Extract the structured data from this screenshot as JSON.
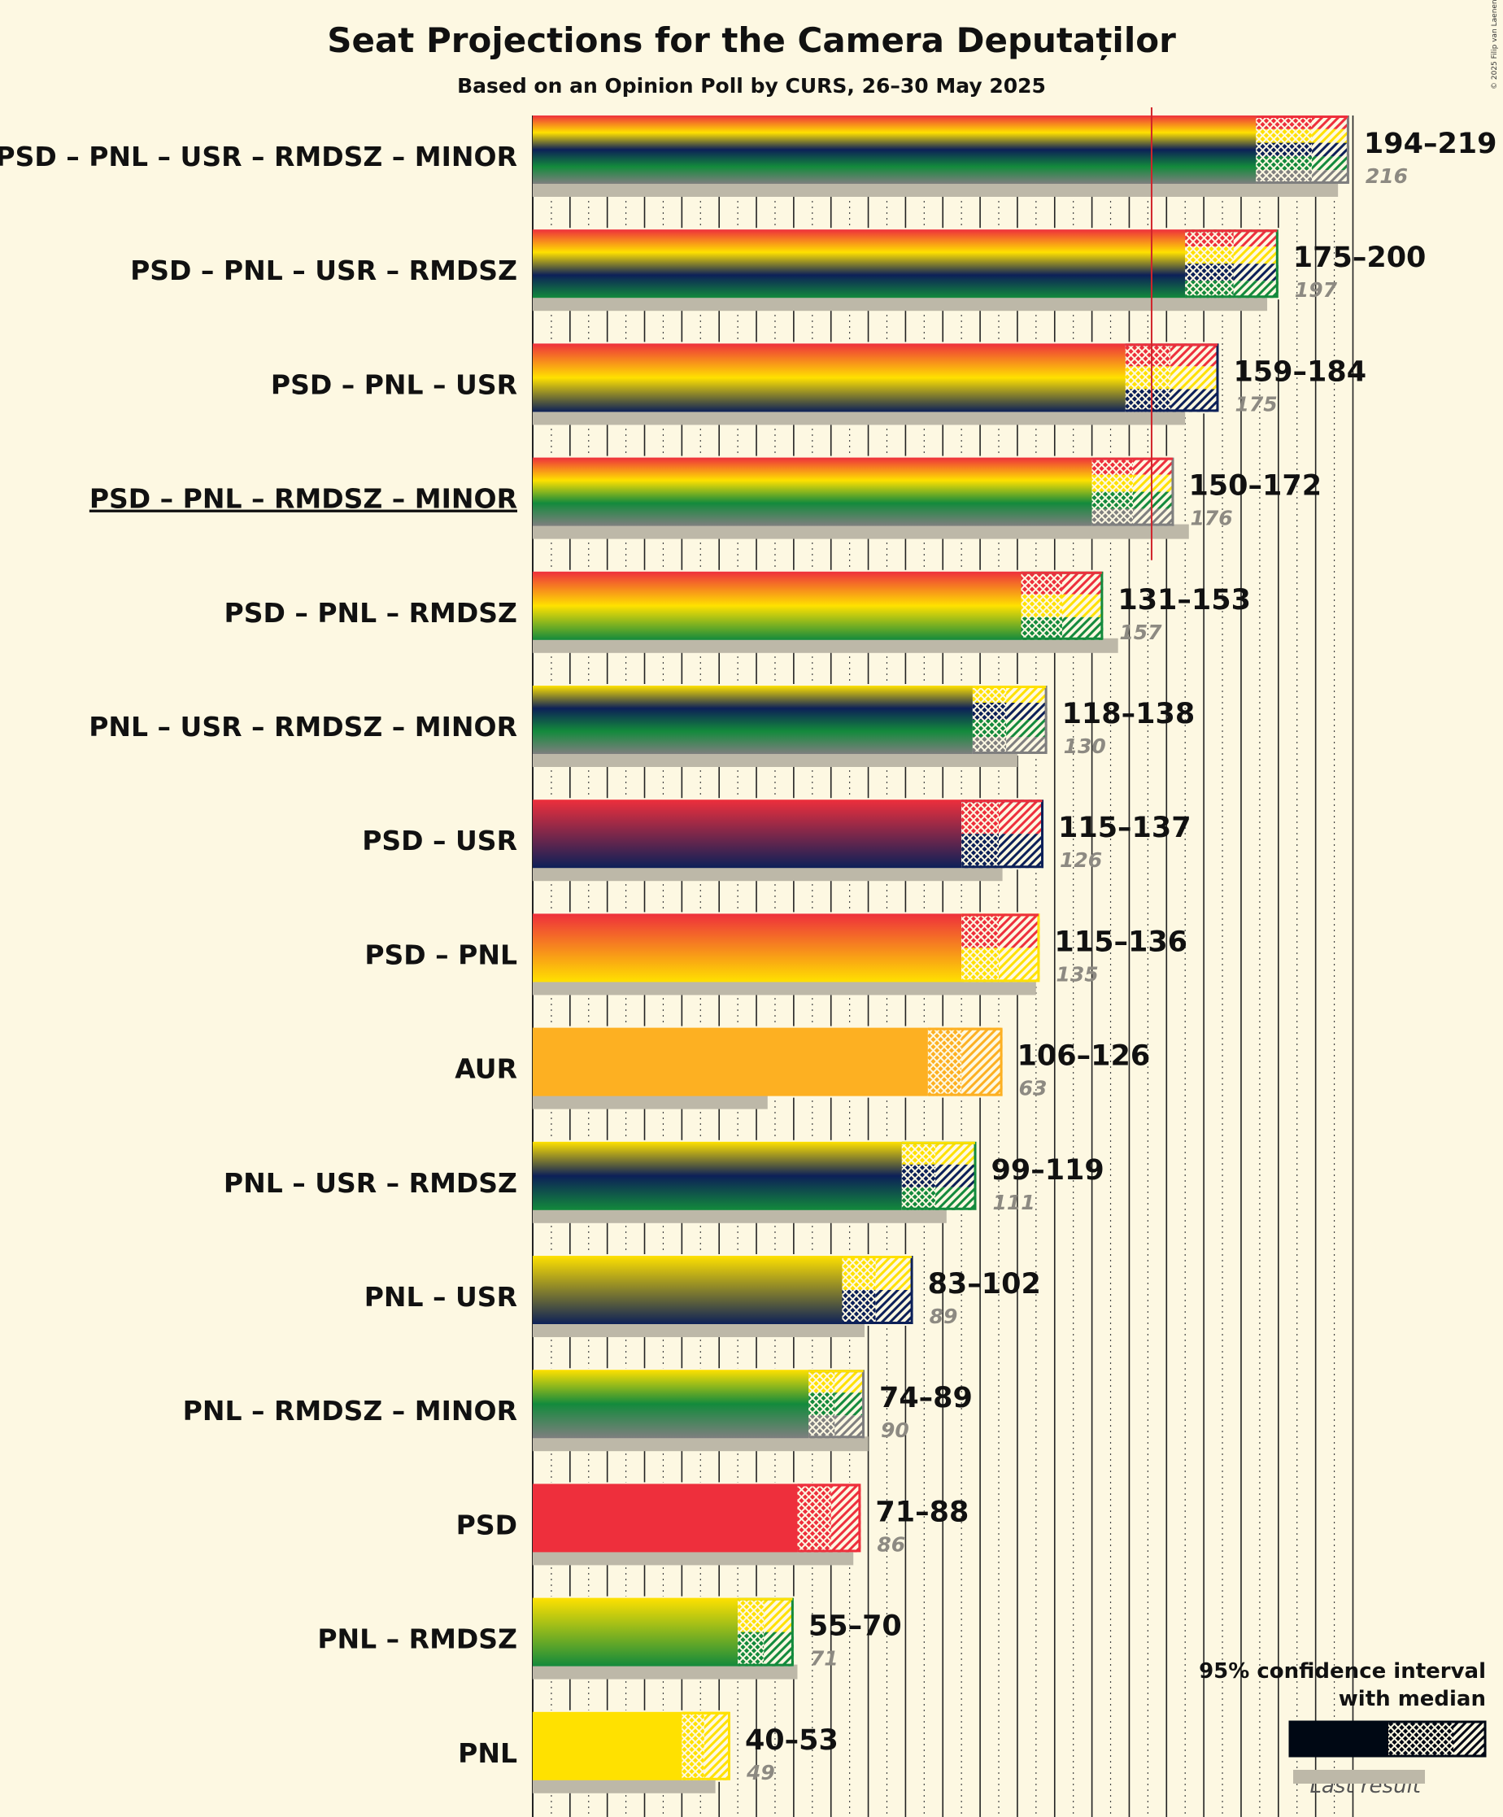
{
  "chart_data": {
    "type": "bar",
    "title": "Seat Projections for the Camera Deputaților",
    "subtitle": "Based on an Opinion Poll by CURS, 26–30 May 2025",
    "copyright": "© 2025 Filip van Laenen",
    "majority_line": 166,
    "xlim": [
      0,
      220
    ],
    "colors": {
      "PSD": "#ee2f3c",
      "PNL": "#ffe100",
      "USR": "#0c2058",
      "RMDSZ": "#138a3c",
      "MINOR": "#7f7f7f",
      "AUR": "#fdb022",
      "last_result_bar": "#bdb8a8",
      "majority_line": "#d1232a"
    },
    "rows": [
      {
        "label": "PSD – PNL – USR – RMDSZ – MINOR",
        "parties": [
          "PSD",
          "PNL",
          "USR",
          "RMDSZ",
          "MINOR"
        ],
        "low": 194,
        "median": 209,
        "high": 219,
        "range_text": "194–219",
        "last": 216,
        "last_text": "216",
        "underlined": false
      },
      {
        "label": "PSD – PNL – USR – RMDSZ",
        "parties": [
          "PSD",
          "PNL",
          "USR",
          "RMDSZ"
        ],
        "low": 175,
        "median": 188,
        "high": 200,
        "range_text": "175–200",
        "last": 197,
        "last_text": "197",
        "underlined": false
      },
      {
        "label": "PSD – PNL – USR",
        "parties": [
          "PSD",
          "PNL",
          "USR"
        ],
        "low": 159,
        "median": 171,
        "high": 184,
        "range_text": "159–184",
        "last": 175,
        "last_text": "175",
        "underlined": false
      },
      {
        "label": "PSD – PNL – RMDSZ – MINOR",
        "parties": [
          "PSD",
          "PNL",
          "RMDSZ",
          "MINOR"
        ],
        "low": 150,
        "median": 161,
        "high": 172,
        "range_text": "150–172",
        "last": 176,
        "last_text": "176",
        "underlined": true
      },
      {
        "label": "PSD – PNL – RMDSZ",
        "parties": [
          "PSD",
          "PNL",
          "RMDSZ"
        ],
        "low": 131,
        "median": 142,
        "high": 153,
        "range_text": "131–153",
        "last": 157,
        "last_text": "157",
        "underlined": false
      },
      {
        "label": "PNL – USR – RMDSZ – MINOR",
        "parties": [
          "PNL",
          "USR",
          "RMDSZ",
          "MINOR"
        ],
        "low": 118,
        "median": 127,
        "high": 138,
        "range_text": "118–138",
        "last": 130,
        "last_text": "130",
        "underlined": false
      },
      {
        "label": "PSD – USR",
        "parties": [
          "PSD",
          "USR"
        ],
        "low": 115,
        "median": 125,
        "high": 137,
        "range_text": "115–137",
        "last": 126,
        "last_text": "126",
        "underlined": false
      },
      {
        "label": "PSD – PNL",
        "parties": [
          "PSD",
          "PNL"
        ],
        "low": 115,
        "median": 125,
        "high": 136,
        "range_text": "115–136",
        "last": 135,
        "last_text": "135",
        "underlined": false
      },
      {
        "label": "AUR",
        "parties": [
          "AUR"
        ],
        "low": 106,
        "median": 115,
        "high": 126,
        "range_text": "106–126",
        "last": 63,
        "last_text": "63",
        "underlined": false
      },
      {
        "label": "PNL – USR – RMDSZ",
        "parties": [
          "PNL",
          "USR",
          "RMDSZ"
        ],
        "low": 99,
        "median": 108,
        "high": 119,
        "range_text": "99–119",
        "last": 111,
        "last_text": "111",
        "underlined": false
      },
      {
        "label": "PNL – USR",
        "parties": [
          "PNL",
          "USR"
        ],
        "low": 83,
        "median": 92,
        "high": 102,
        "range_text": "83–102",
        "last": 89,
        "last_text": "89",
        "underlined": false
      },
      {
        "label": "PNL – RMDSZ – MINOR",
        "parties": [
          "PNL",
          "RMDSZ",
          "MINOR"
        ],
        "low": 74,
        "median": 81,
        "high": 89,
        "range_text": "74–89",
        "last": 90,
        "last_text": "90",
        "underlined": false
      },
      {
        "label": "PSD",
        "parties": [
          "PSD"
        ],
        "low": 71,
        "median": 80,
        "high": 88,
        "range_text": "71–88",
        "last": 86,
        "last_text": "86",
        "underlined": false
      },
      {
        "label": "PNL – RMDSZ",
        "parties": [
          "PNL",
          "RMDSZ"
        ],
        "low": 55,
        "median": 62,
        "high": 70,
        "range_text": "55–70",
        "last": 71,
        "last_text": "71",
        "underlined": false
      },
      {
        "label": "PNL",
        "parties": [
          "PNL"
        ],
        "low": 40,
        "median": 46,
        "high": 53,
        "range_text": "40–53",
        "last": 49,
        "last_text": "49",
        "underlined": false
      }
    ],
    "legend": {
      "line1": "95% confidence interval",
      "line2": "with median",
      "last_result": "Last result"
    }
  }
}
